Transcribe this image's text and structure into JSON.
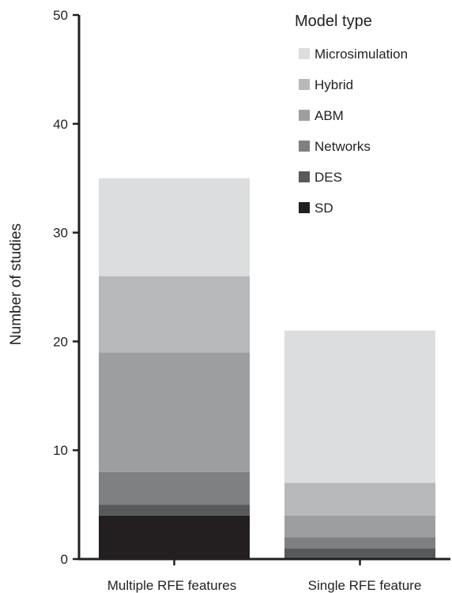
{
  "chart_data": {
    "type": "bar",
    "stacked": true,
    "title": "",
    "xlabel": "",
    "ylabel": "Number of studies",
    "ylim": [
      0,
      50
    ],
    "yticks": [
      0,
      10,
      20,
      30,
      40,
      50
    ],
    "categories": [
      "Multiple RFE features",
      "Single RFE feature"
    ],
    "series": [
      {
        "name": "SD",
        "color": "#231f20",
        "values": [
          4,
          0
        ]
      },
      {
        "name": "DES",
        "color": "#58595b",
        "values": [
          1,
          1
        ]
      },
      {
        "name": "Networks",
        "color": "#7f8082",
        "values": [
          3,
          1
        ]
      },
      {
        "name": "ABM",
        "color": "#9d9e a0",
        "values": [
          11,
          2
        ]
      },
      {
        "name": "Hybrid",
        "color": "#b8b9bb",
        "values": [
          7,
          3
        ]
      },
      {
        "name": "Microsimulation",
        "color": "#dcddde",
        "values": [
          9,
          14
        ]
      }
    ],
    "legend": {
      "title": "Model type",
      "placement": "top-right",
      "order": [
        "Microsimulation",
        "Hybrid",
        "ABM",
        "Networks",
        "DES",
        "SD"
      ]
    },
    "grid": false
  }
}
